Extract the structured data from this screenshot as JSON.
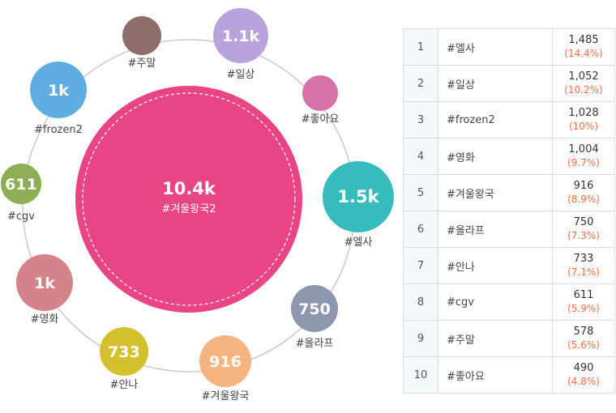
{
  "colors": {
    "ring": "#c9c9c9",
    "center_fill": "#e94584",
    "center_dash": "#ffffff"
  },
  "chart_data": {
    "type": "bubble",
    "center": {
      "tag": "#겨울왕국2",
      "value_label": "10.4k",
      "color": "#e94584"
    },
    "bubbles": [
      {
        "tag": "#주말",
        "value_label": "",
        "value": 578,
        "color": "#8e6e6a"
      },
      {
        "tag": "#일상",
        "value_label": "1.1k",
        "value": 1052,
        "color": "#b9a3dc"
      },
      {
        "tag": "#좋아요",
        "value_label": "",
        "value": 490,
        "color": "#d772a8"
      },
      {
        "tag": "#엘사",
        "value_label": "1.5k",
        "value": 1485,
        "color": "#37bcbd"
      },
      {
        "tag": "#올라프",
        "value_label": "750",
        "value": 750,
        "color": "#8d97ad"
      },
      {
        "tag": "#겨울왕국",
        "value_label": "916",
        "value": 916,
        "color": "#f4b583"
      },
      {
        "tag": "#안나",
        "value_label": "733",
        "value": 733,
        "color": "#d4c02d"
      },
      {
        "tag": "#영화",
        "value_label": "1k",
        "value": 1004,
        "color": "#d4838a"
      },
      {
        "tag": "#cgv",
        "value_label": "611",
        "value": 611,
        "color": "#8eae55"
      },
      {
        "tag": "#frozen2",
        "value_label": "1k",
        "value": 1028,
        "color": "#5fade2"
      }
    ],
    "ranking": [
      {
        "rank": "1",
        "tag": "#엘사",
        "count": "1,485",
        "pct": "(14.4%)"
      },
      {
        "rank": "2",
        "tag": "#일상",
        "count": "1,052",
        "pct": "(10.2%)"
      },
      {
        "rank": "3",
        "tag": "#frozen2",
        "count": "1,028",
        "pct": "(10%)"
      },
      {
        "rank": "4",
        "tag": "#영화",
        "count": "1,004",
        "pct": "(9.7%)"
      },
      {
        "rank": "5",
        "tag": "#겨울왕국",
        "count": "916",
        "pct": "(8.9%)"
      },
      {
        "rank": "6",
        "tag": "#올라프",
        "count": "750",
        "pct": "(7.3%)"
      },
      {
        "rank": "7",
        "tag": "#안나",
        "count": "733",
        "pct": "(7.1%)"
      },
      {
        "rank": "8",
        "tag": "#cgv",
        "count": "611",
        "pct": "(5.9%)"
      },
      {
        "rank": "9",
        "tag": "#주말",
        "count": "578",
        "pct": "(5.6%)"
      },
      {
        "rank": "10",
        "tag": "#좋아요",
        "count": "490",
        "pct": "(4.8%)"
      }
    ]
  }
}
